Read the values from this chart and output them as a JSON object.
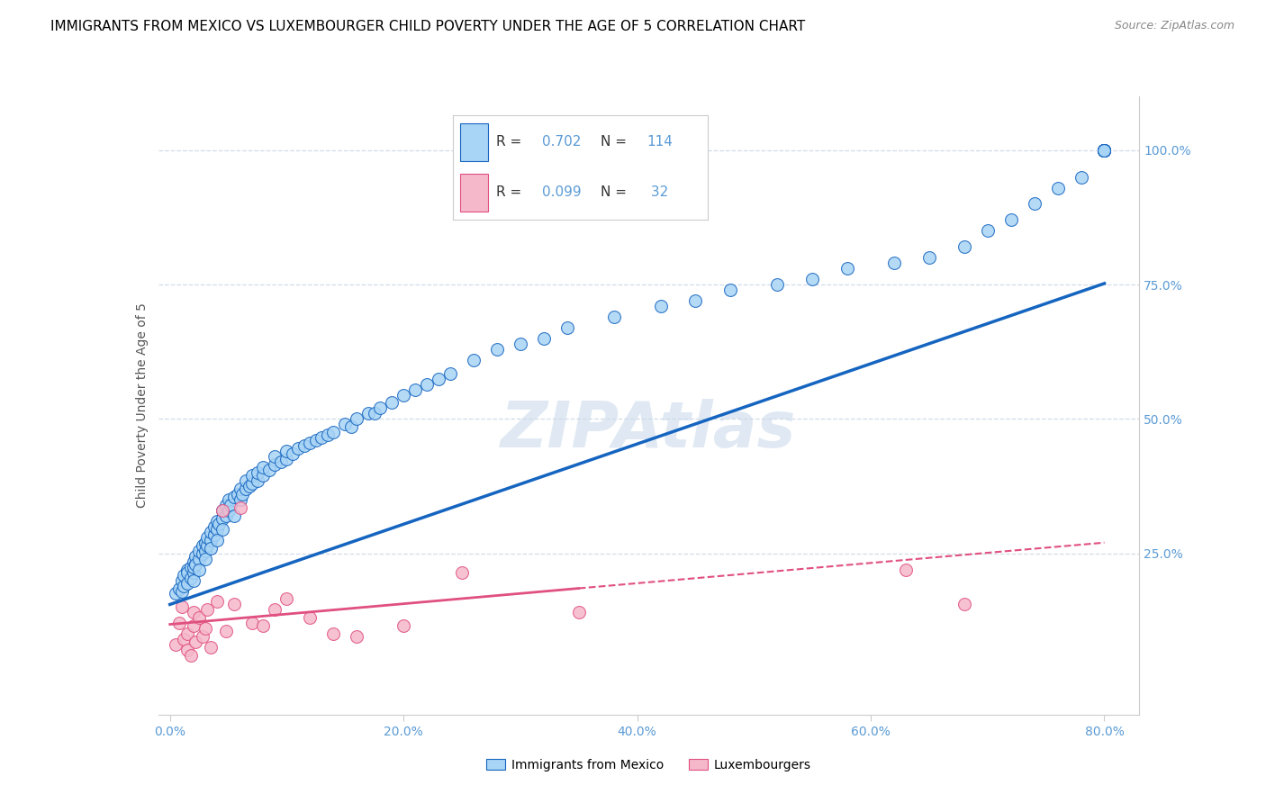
{
  "title": "IMMIGRANTS FROM MEXICO VS LUXEMBOURGER CHILD POVERTY UNDER THE AGE OF 5 CORRELATION CHART",
  "source": "Source: ZipAtlas.com",
  "ylabel": "Child Poverty Under the Age of 5",
  "x_tick_labels": [
    "0.0%",
    "20.0%",
    "40.0%",
    "60.0%",
    "80.0%"
  ],
  "x_tick_values": [
    0.0,
    0.2,
    0.4,
    0.6,
    0.8
  ],
  "y_tick_labels": [
    "25.0%",
    "50.0%",
    "75.0%",
    "100.0%"
  ],
  "y_tick_values": [
    0.25,
    0.5,
    0.75,
    1.0
  ],
  "xlim": [
    -0.01,
    0.83
  ],
  "ylim": [
    -0.05,
    1.1
  ],
  "legend_label1": "Immigrants from Mexico",
  "legend_label2": "Luxembourgers",
  "R1": "0.702",
  "N1": "114",
  "R2": "0.099",
  "N2": " 32",
  "scatter_color1": "#a8d4f5",
  "scatter_color2": "#f5b8cb",
  "line_color1": "#1565c0",
  "line_color2": "#e05080",
  "tick_color": "#5b9bd5",
  "grid_color": "#d0dce8",
  "watermark": "ZIPAtlas",
  "title_fontsize": 11,
  "source_fontsize": 9,
  "axis_label_fontsize": 10,
  "tick_fontsize": 10,
  "bg_color": "#ffffff",
  "mexico_x": [
    0.005,
    0.008,
    0.01,
    0.01,
    0.012,
    0.012,
    0.015,
    0.015,
    0.015,
    0.018,
    0.018,
    0.02,
    0.02,
    0.02,
    0.02,
    0.022,
    0.022,
    0.025,
    0.025,
    0.025,
    0.028,
    0.028,
    0.03,
    0.03,
    0.03,
    0.032,
    0.032,
    0.035,
    0.035,
    0.035,
    0.038,
    0.038,
    0.04,
    0.04,
    0.04,
    0.042,
    0.045,
    0.045,
    0.045,
    0.048,
    0.048,
    0.05,
    0.05,
    0.052,
    0.055,
    0.055,
    0.058,
    0.06,
    0.06,
    0.062,
    0.065,
    0.065,
    0.068,
    0.07,
    0.07,
    0.075,
    0.075,
    0.08,
    0.08,
    0.085,
    0.09,
    0.09,
    0.095,
    0.1,
    0.1,
    0.105,
    0.11,
    0.115,
    0.12,
    0.125,
    0.13,
    0.135,
    0.14,
    0.15,
    0.155,
    0.16,
    0.17,
    0.175,
    0.18,
    0.19,
    0.2,
    0.21,
    0.22,
    0.23,
    0.24,
    0.26,
    0.28,
    0.3,
    0.32,
    0.34,
    0.38,
    0.42,
    0.45,
    0.48,
    0.52,
    0.55,
    0.58,
    0.62,
    0.65,
    0.68,
    0.7,
    0.72,
    0.74,
    0.76,
    0.78,
    0.8,
    0.8,
    0.8,
    0.8,
    0.8,
    0.8,
    0.8,
    0.8,
    0.8
  ],
  "mexico_y": [
    0.175,
    0.185,
    0.2,
    0.18,
    0.19,
    0.21,
    0.22,
    0.195,
    0.215,
    0.205,
    0.225,
    0.215,
    0.235,
    0.2,
    0.225,
    0.245,
    0.23,
    0.24,
    0.255,
    0.22,
    0.25,
    0.265,
    0.255,
    0.27,
    0.24,
    0.265,
    0.28,
    0.275,
    0.29,
    0.26,
    0.285,
    0.3,
    0.295,
    0.31,
    0.275,
    0.305,
    0.315,
    0.33,
    0.295,
    0.32,
    0.34,
    0.33,
    0.35,
    0.34,
    0.355,
    0.32,
    0.36,
    0.35,
    0.37,
    0.36,
    0.37,
    0.385,
    0.375,
    0.38,
    0.395,
    0.385,
    0.4,
    0.395,
    0.41,
    0.405,
    0.415,
    0.43,
    0.42,
    0.425,
    0.44,
    0.435,
    0.445,
    0.45,
    0.455,
    0.46,
    0.465,
    0.47,
    0.475,
    0.49,
    0.485,
    0.5,
    0.51,
    0.51,
    0.52,
    0.53,
    0.545,
    0.555,
    0.565,
    0.575,
    0.585,
    0.61,
    0.63,
    0.64,
    0.65,
    0.67,
    0.69,
    0.71,
    0.72,
    0.74,
    0.75,
    0.76,
    0.78,
    0.79,
    0.8,
    0.82,
    0.85,
    0.87,
    0.9,
    0.93,
    0.95,
    1.0,
    1.0,
    1.0,
    1.0,
    1.0,
    1.0,
    1.0,
    1.0,
    1.0
  ],
  "lux_x": [
    0.005,
    0.008,
    0.01,
    0.012,
    0.015,
    0.015,
    0.018,
    0.02,
    0.02,
    0.022,
    0.025,
    0.028,
    0.03,
    0.032,
    0.035,
    0.04,
    0.045,
    0.048,
    0.055,
    0.06,
    0.07,
    0.08,
    0.09,
    0.1,
    0.12,
    0.14,
    0.16,
    0.2,
    0.25,
    0.35,
    0.63,
    0.68
  ],
  "lux_y": [
    0.08,
    0.12,
    0.15,
    0.09,
    0.07,
    0.1,
    0.06,
    0.115,
    0.14,
    0.085,
    0.13,
    0.095,
    0.11,
    0.145,
    0.075,
    0.16,
    0.33,
    0.105,
    0.155,
    0.335,
    0.12,
    0.115,
    0.145,
    0.165,
    0.13,
    0.1,
    0.095,
    0.115,
    0.215,
    0.14,
    0.22,
    0.155
  ],
  "line1_x0": 0.0,
  "line1_y0": 0.155,
  "line1_x1": 0.8,
  "line1_y1": 0.752,
  "line2_x0": 0.0,
  "line2_y0": 0.118,
  "line2_x1": 0.35,
  "line2_y1": 0.185,
  "line2dash_x0": 0.35,
  "line2dash_y0": 0.185,
  "line2dash_x1": 0.8,
  "line2dash_y1": 0.27
}
